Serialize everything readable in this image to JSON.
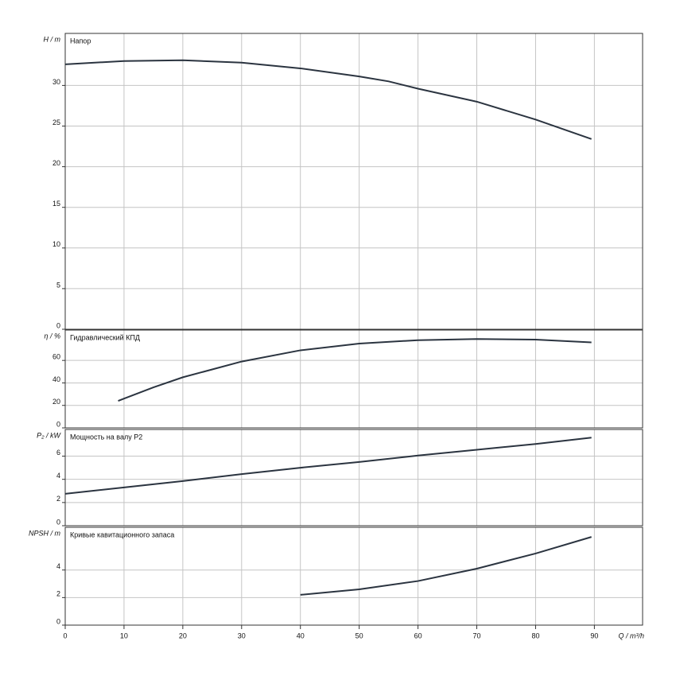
{
  "chart_data": [
    {
      "type": "line",
      "title": "Напор",
      "ylabel": "H / m",
      "color": "#2b3440",
      "x": [
        0,
        10,
        20,
        30,
        40,
        50,
        55,
        60,
        70,
        80,
        89.5
      ],
      "values": [
        32.6,
        33.0,
        33.1,
        32.8,
        32.1,
        31.1,
        30.5,
        29.6,
        28.0,
        25.8,
        23.4
      ],
      "xlim": [
        0,
        98.2
      ],
      "ylim": [
        0,
        36.4
      ],
      "yticks": [
        0,
        5,
        10,
        15,
        20,
        25,
        30
      ],
      "grid": true
    },
    {
      "type": "line",
      "title": "Гидравлический КПД",
      "ylabel": "η / %",
      "color": "#2b3440",
      "x": [
        9,
        10,
        15,
        20,
        25,
        30,
        40,
        50,
        60,
        70,
        80,
        89.5
      ],
      "values": [
        24,
        26,
        36,
        45,
        52,
        59,
        69,
        75,
        78,
        79,
        78.5,
        76
      ],
      "xlim": [
        0,
        98.2
      ],
      "ylim": [
        0,
        87
      ],
      "yticks": [
        0,
        20,
        40,
        60
      ],
      "grid": true
    },
    {
      "type": "line",
      "title": "Мощность на валу P2",
      "ylabel": "P₂ / kW",
      "color": "#2b3440",
      "x": [
        0,
        10,
        20,
        30,
        40,
        50,
        60,
        70,
        80,
        89.5
      ],
      "values": [
        2.75,
        3.3,
        3.85,
        4.45,
        5.0,
        5.5,
        6.05,
        6.55,
        7.05,
        7.6
      ],
      "xlim": [
        0,
        98.2
      ],
      "ylim": [
        0,
        8.3
      ],
      "yticks": [
        0,
        2,
        4,
        6
      ],
      "grid": true
    },
    {
      "type": "line",
      "title": "Кривые кавитационного запаса",
      "ylabel": "NPSH / m",
      "color": "#2b3440",
      "x": [
        40,
        50,
        60,
        70,
        80,
        89.5
      ],
      "values": [
        2.2,
        2.6,
        3.2,
        4.1,
        5.2,
        6.4
      ],
      "xlim": [
        0,
        98.2
      ],
      "ylim": [
        0,
        7.1
      ],
      "yticks": [
        0,
        2,
        4
      ],
      "grid": true,
      "xticks": [
        0,
        10,
        20,
        30,
        40,
        50,
        60,
        70,
        80,
        90
      ],
      "xlabel": "Q / m³/h"
    }
  ]
}
